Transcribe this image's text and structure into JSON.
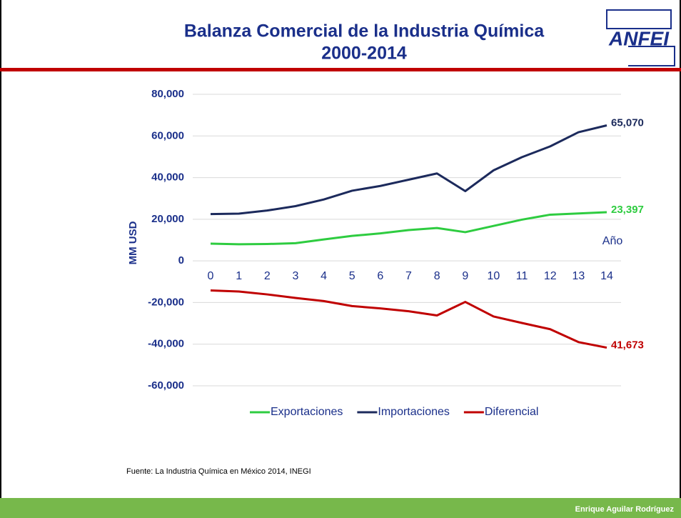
{
  "title": "Balanza Comercial de la Industria Química",
  "subtitle": "2000-2014",
  "logo": "ANFEI",
  "chart_data": {
    "type": "line",
    "categories": [
      "0",
      "1",
      "2",
      "3",
      "4",
      "5",
      "6",
      "7",
      "8",
      "9",
      "10",
      "11",
      "12",
      "13",
      "14"
    ],
    "x_label": "Año",
    "y_label": "MM USD",
    "ylim": [
      -60000,
      80000
    ],
    "yticks": [
      {
        "value": -60000,
        "label": "-60,000"
      },
      {
        "value": -40000,
        "label": "-40,000"
      },
      {
        "value": -20000,
        "label": "-20,000"
      },
      0,
      {
        "value": 20000,
        "label": "20,000"
      },
      {
        "value": 40000,
        "label": "40,000"
      },
      {
        "value": 60000,
        "label": "60,000"
      },
      {
        "value": 80000,
        "label": "80,000"
      }
    ],
    "grid": true,
    "legend": "bottom",
    "series": [
      {
        "name": "Exportaciones",
        "color": "#2ecc40",
        "values": [
          8300,
          8000,
          8100,
          8500,
          10300,
          12000,
          13200,
          14800,
          15800,
          13800,
          16800,
          19800,
          22200,
          22800,
          23397
        ],
        "value_labels": [
          null,
          null,
          null,
          null,
          null,
          null,
          null,
          null,
          null,
          null,
          null,
          null,
          null,
          null,
          "23,397"
        ]
      },
      {
        "name": "Importaciones",
        "color": "#1c2a5c",
        "values": [
          22500,
          22700,
          24200,
          26300,
          29500,
          33700,
          36000,
          39000,
          42000,
          33500,
          43500,
          49800,
          55000,
          61800,
          65070
        ],
        "value_labels": [
          null,
          null,
          null,
          null,
          null,
          null,
          null,
          null,
          null,
          null,
          null,
          null,
          null,
          null,
          "65,070"
        ]
      },
      {
        "name": "Diferencial",
        "color": "#c00000",
        "values": [
          -14200,
          -14700,
          -16100,
          -17800,
          -19300,
          -21700,
          -22800,
          -24200,
          -26200,
          -19700,
          -26700,
          -29800,
          -32800,
          -39000,
          -41673
        ],
        "value_labels": [
          null,
          null,
          null,
          null,
          null,
          null,
          null,
          null,
          null,
          null,
          null,
          null,
          null,
          null,
          "41,673"
        ]
      }
    ]
  },
  "source": "Fuente: La Industria Química en México 2014, INEGI",
  "author": "Enrique Aguilar Rodríguez"
}
